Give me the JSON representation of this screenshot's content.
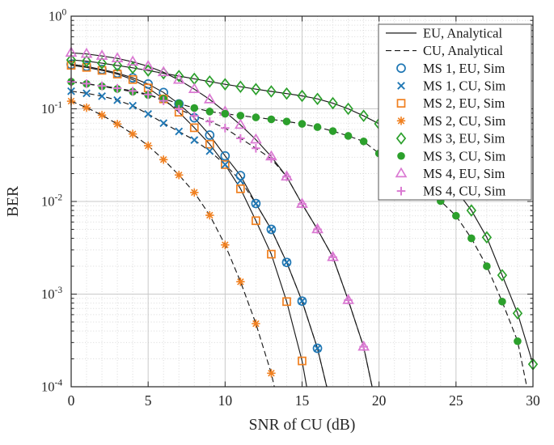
{
  "figure": {
    "xlabel": "SNR of CU (dB)",
    "ylabel": "BER",
    "x_tick_labels": [
      "0",
      "5",
      "10",
      "15",
      "20",
      "25",
      "30"
    ],
    "y_tick_exponents": [
      "0",
      "-1",
      "-2",
      "-3",
      "-4"
    ]
  },
  "style": {
    "background": "#ffffff",
    "line_color": "#1a1a1a",
    "axis_color": "#262626",
    "text_color": "#262626",
    "grid_major": "#c9c9c9",
    "grid_minor": "#d9d9d9",
    "legend_border": "#545454",
    "blue": "#1f77b4",
    "orange": "#f08020",
    "green": "#2ca02c",
    "pink": "#da79d2"
  },
  "legend": {
    "entries": [
      {
        "label": "EU, Analytical",
        "sample": "line-solid",
        "color": "#1a1a1a"
      },
      {
        "label": "CU, Analytical",
        "sample": "line-dashed",
        "color": "#1a1a1a"
      },
      {
        "label": "MS 1, EU, Sim",
        "sample": "marker",
        "marker": "circle",
        "color": "#1f77b4"
      },
      {
        "label": "MS 1, CU, Sim",
        "sample": "marker",
        "marker": "x",
        "color": "#1f77b4"
      },
      {
        "label": "MS 2, EU, Sim",
        "sample": "marker",
        "marker": "square",
        "color": "#f08020"
      },
      {
        "label": "MS 2, CU, Sim",
        "sample": "marker",
        "marker": "asterisk",
        "color": "#f08020"
      },
      {
        "label": "MS 3, EU, Sim",
        "sample": "marker",
        "marker": "diamond",
        "color": "#2ca02c"
      },
      {
        "label": "MS 3, CU, Sim",
        "sample": "marker",
        "marker": "dot",
        "color": "#2ca02c"
      },
      {
        "label": "MS 4, EU, Sim",
        "sample": "marker",
        "marker": "triangle",
        "color": "#da79d2"
      },
      {
        "label": "MS 4, CU, Sim",
        "sample": "marker",
        "marker": "plus",
        "color": "#da79d2"
      }
    ]
  },
  "chart_data": {
    "type": "line",
    "title": "",
    "xlabel": "SNR of CU (dB)",
    "ylabel": "BER",
    "xlim": [
      0,
      30
    ],
    "x_ticks": [
      0,
      5,
      10,
      15,
      20,
      25,
      30
    ],
    "y_scale": "log",
    "ylim": [
      0.0001,
      1
    ],
    "y_decades": 4,
    "grid": "major+minor",
    "legend_position": "northeast",
    "series": [
      {
        "id": "ms1-eu",
        "name": "MS 1, EU, Sim",
        "group": "EU",
        "line": "solid",
        "marker": "circle",
        "color": "#1f77b4",
        "points": [
          [
            0,
            0.302
          ],
          [
            1,
            0.287
          ],
          [
            2,
            0.266
          ],
          [
            3,
            0.243
          ],
          [
            4,
            0.216
          ],
          [
            5,
            0.185
          ],
          [
            6,
            0.15
          ],
          [
            7,
            0.113
          ],
          [
            8,
            0.08
          ],
          [
            9,
            0.052
          ],
          [
            10,
            0.031
          ],
          [
            11,
            0.019
          ],
          [
            12,
            0.0095
          ],
          [
            13,
            0.005
          ],
          [
            14,
            0.0022
          ],
          [
            15,
            0.00084
          ],
          [
            16,
            0.00026
          ],
          [
            16.6,
            0.0001
          ]
        ]
      },
      {
        "id": "ms2-eu",
        "name": "MS 2, EU, Sim",
        "group": "EU",
        "line": "solid",
        "marker": "square",
        "color": "#f08020",
        "points": [
          [
            0,
            0.295
          ],
          [
            1,
            0.28
          ],
          [
            2,
            0.26
          ],
          [
            3,
            0.237
          ],
          [
            4,
            0.207
          ],
          [
            5,
            0.168
          ],
          [
            6,
            0.128
          ],
          [
            7,
            0.092
          ],
          [
            8,
            0.0625
          ],
          [
            9,
            0.0415
          ],
          [
            10,
            0.025
          ],
          [
            11,
            0.0137
          ],
          [
            12,
            0.0062
          ],
          [
            13,
            0.0027
          ],
          [
            14,
            0.00083
          ],
          [
            15,
            0.00019
          ],
          [
            15.3,
            0.0001
          ]
        ]
      },
      {
        "id": "ms3-eu",
        "name": "MS 3, EU, Sim",
        "group": "EU",
        "line": "solid",
        "marker": "diamond",
        "color": "#2ca02c",
        "points": [
          [
            0,
            0.337
          ],
          [
            1,
            0.327
          ],
          [
            2,
            0.311
          ],
          [
            3,
            0.294
          ],
          [
            4,
            0.277
          ],
          [
            5,
            0.259
          ],
          [
            6,
            0.242
          ],
          [
            7,
            0.226
          ],
          [
            8,
            0.211
          ],
          [
            9,
            0.197
          ],
          [
            10,
            0.184
          ],
          [
            11,
            0.173
          ],
          [
            12,
            0.163
          ],
          [
            13,
            0.154
          ],
          [
            14,
            0.146
          ],
          [
            15,
            0.138
          ],
          [
            16,
            0.128
          ],
          [
            17,
            0.115
          ],
          [
            18,
            0.1
          ],
          [
            19,
            0.084
          ],
          [
            20,
            0.069
          ],
          [
            21,
            0.0545
          ],
          [
            22,
            0.0415
          ],
          [
            23,
            0.03
          ],
          [
            24,
            0.0205
          ],
          [
            25,
            0.0133
          ],
          [
            26,
            0.008
          ],
          [
            27,
            0.0041
          ],
          [
            28,
            0.0016
          ],
          [
            29,
            0.00062
          ],
          [
            30,
            0.000175
          ]
        ]
      },
      {
        "id": "ms4-eu",
        "name": "MS 4, EU, Sim",
        "group": "EU",
        "line": "solid",
        "marker": "triangle",
        "color": "#da79d2",
        "points": [
          [
            0,
            0.402
          ],
          [
            1,
            0.391
          ],
          [
            2,
            0.372
          ],
          [
            3,
            0.35
          ],
          [
            4,
            0.322
          ],
          [
            5,
            0.288
          ],
          [
            6,
            0.248
          ],
          [
            7,
            0.205
          ],
          [
            8,
            0.163
          ],
          [
            9,
            0.126
          ],
          [
            10,
            0.093
          ],
          [
            11,
            0.067
          ],
          [
            12,
            0.0465
          ],
          [
            13,
            0.0305
          ],
          [
            14,
            0.0185
          ],
          [
            15,
            0.0094
          ],
          [
            16,
            0.005
          ],
          [
            17,
            0.0025
          ],
          [
            18,
            0.00086
          ],
          [
            19,
            0.00027
          ],
          [
            19.55,
            0.0001
          ]
        ]
      },
      {
        "id": "ms1-cu",
        "name": "MS 1, CU, Sim",
        "group": "CU",
        "line": "dashed",
        "marker": "x",
        "color": "#1f77b4",
        "points": [
          [
            0,
            0.155
          ],
          [
            1,
            0.147
          ],
          [
            2,
            0.137
          ],
          [
            3,
            0.124
          ],
          [
            4,
            0.108
          ],
          [
            5,
            0.088
          ],
          [
            6,
            0.07
          ],
          [
            7,
            0.057
          ],
          [
            8,
            0.046
          ],
          [
            9,
            0.035
          ],
          [
            10,
            0.025
          ],
          [
            11,
            0.0168
          ],
          [
            12,
            0.0095
          ],
          [
            13,
            0.005
          ],
          [
            14,
            0.0022
          ],
          [
            15,
            0.00084
          ],
          [
            16,
            0.00026
          ],
          [
            16.6,
            0.0001
          ]
        ]
      },
      {
        "id": "ms2-cu",
        "name": "MS 2, CU, Sim",
        "group": "CU",
        "line": "dashed",
        "marker": "asterisk",
        "color": "#f08020",
        "points": [
          [
            0,
            0.121
          ],
          [
            1,
            0.103
          ],
          [
            2,
            0.0855
          ],
          [
            3,
            0.0685
          ],
          [
            4,
            0.0535
          ],
          [
            5,
            0.04
          ],
          [
            6,
            0.0283
          ],
          [
            7,
            0.0193
          ],
          [
            8,
            0.0125
          ],
          [
            9,
            0.0071
          ],
          [
            10,
            0.0034
          ],
          [
            11,
            0.00136
          ],
          [
            12,
            0.00048
          ],
          [
            13,
            0.00014
          ],
          [
            13.2,
            0.0001
          ]
        ]
      },
      {
        "id": "ms3-cu",
        "name": "MS 3, CU, Sim",
        "group": "CU",
        "line": "dashed",
        "marker": "dot",
        "color": "#2ca02c",
        "points": [
          [
            0,
            0.196
          ],
          [
            1,
            0.186
          ],
          [
            2,
            0.175
          ],
          [
            3,
            0.164
          ],
          [
            4,
            0.153
          ],
          [
            5,
            0.141
          ],
          [
            6,
            0.128
          ],
          [
            7,
            0.114
          ],
          [
            8,
            0.102
          ],
          [
            9,
            0.0935
          ],
          [
            10,
            0.0885
          ],
          [
            11,
            0.0845
          ],
          [
            12,
            0.0808
          ],
          [
            13,
            0.077
          ],
          [
            14,
            0.073
          ],
          [
            15,
            0.0688
          ],
          [
            16,
            0.0635
          ],
          [
            17,
            0.0575
          ],
          [
            18,
            0.051
          ],
          [
            19,
            0.0445
          ],
          [
            20,
            0.033
          ],
          [
            21,
            0.0253
          ],
          [
            22,
            0.019
          ],
          [
            23,
            0.0139
          ],
          [
            24,
            0.0101
          ],
          [
            25,
            0.007
          ],
          [
            26,
            0.004
          ],
          [
            27,
            0.002
          ],
          [
            28,
            0.00083
          ],
          [
            29,
            0.00031
          ],
          [
            29.6,
            0.0001
          ]
        ]
      },
      {
        "id": "ms4-cu",
        "name": "MS 4, CU, Sim",
        "group": "CU",
        "line": "dashed",
        "marker": "plus",
        "color": "#da79d2",
        "points": [
          [
            0,
            0.196
          ],
          [
            1,
            0.187
          ],
          [
            2,
            0.177
          ],
          [
            3,
            0.167
          ],
          [
            4,
            0.156
          ],
          [
            5,
            0.143
          ],
          [
            6,
            0.122
          ],
          [
            7,
            0.099
          ],
          [
            8,
            0.084
          ],
          [
            9,
            0.073
          ],
          [
            10,
            0.062
          ],
          [
            11,
            0.048
          ],
          [
            12,
            0.0375
          ],
          [
            13,
            0.029
          ],
          [
            14,
            0.0185
          ],
          [
            15,
            0.0094
          ],
          [
            16,
            0.005
          ],
          [
            17,
            0.0025
          ],
          [
            18,
            0.00086
          ],
          [
            19,
            0.00027
          ],
          [
            19.55,
            0.0001
          ]
        ]
      }
    ]
  }
}
